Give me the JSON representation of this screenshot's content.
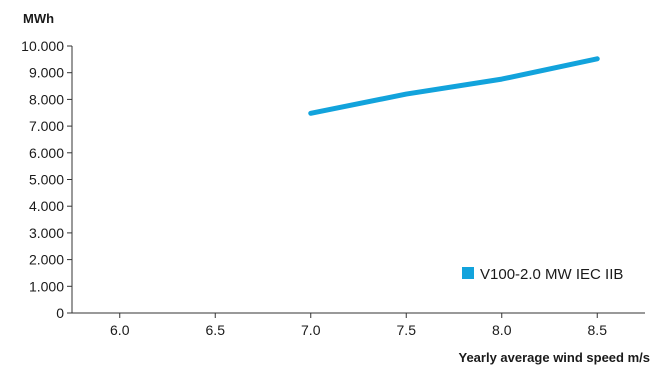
{
  "chart_data": {
    "type": "line",
    "title": "",
    "ylabel": "MWh",
    "xlabel": "Yearly average wind speed m/s",
    "x_ticks": [
      "6.0",
      "6.5",
      "7.0",
      "7.5",
      "8.0",
      "8.5"
    ],
    "y_ticks": [
      "0",
      "1.000",
      "2.000",
      "3.000",
      "4.000",
      "5.000",
      "6.000",
      "7.000",
      "8.000",
      "9.000",
      "10.000"
    ],
    "xlim": [
      5.75,
      8.75
    ],
    "ylim": [
      0,
      10000
    ],
    "grid": false,
    "legend_position": "bottom-right",
    "series": [
      {
        "name": "V100-2.0 MW IEC IIB",
        "color": "#12a3dc",
        "x": [
          7.0,
          7.5,
          8.0,
          8.5
        ],
        "y": [
          7480,
          8200,
          8760,
          9520
        ]
      }
    ]
  }
}
